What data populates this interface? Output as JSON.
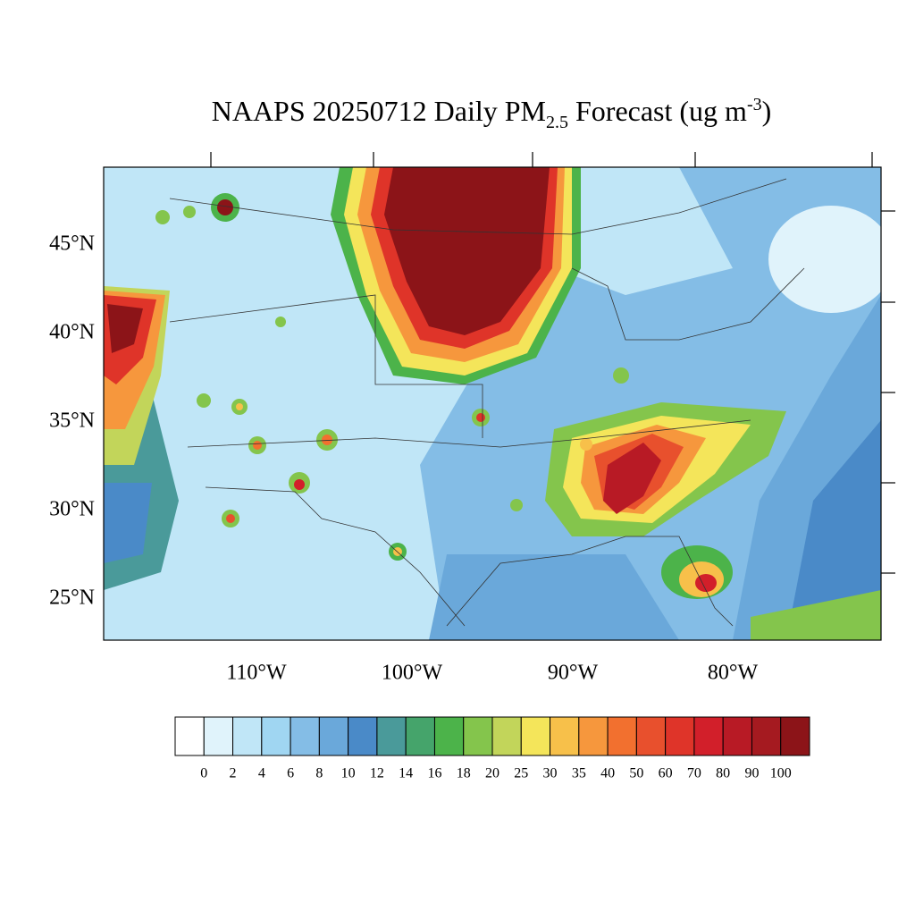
{
  "title": {
    "main": "NAAPS 20250712 Daily PM",
    "subscript": "2.5",
    "rest": " Forecast (ug m",
    "superscript": "-3",
    "close": ")"
  },
  "map": {
    "lat_labels": [
      "45°N",
      "40°N",
      "35°N",
      "30°N",
      "25°N"
    ],
    "lon_labels": [
      "110°W",
      "100°W",
      "90°W",
      "80°W"
    ]
  },
  "colorbar": {
    "levels": [
      0,
      2,
      4,
      6,
      8,
      10,
      12,
      14,
      16,
      18,
      20,
      25,
      30,
      35,
      40,
      50,
      60,
      70,
      80,
      90,
      100
    ],
    "colors": [
      "#ffffff",
      "#e0f3fb",
      "#c0e6f7",
      "#a0d6f2",
      "#84bde6",
      "#6aa8da",
      "#4a8ac8",
      "#4a9a9a",
      "#45a46b",
      "#4cb34a",
      "#84c54c",
      "#c2d55a",
      "#f4e55a",
      "#f7c04a",
      "#f6973d",
      "#f2702f",
      "#e8502d",
      "#df3429",
      "#d21f2a",
      "#b81a25",
      "#a51a20",
      "#8c1418"
    ]
  }
}
